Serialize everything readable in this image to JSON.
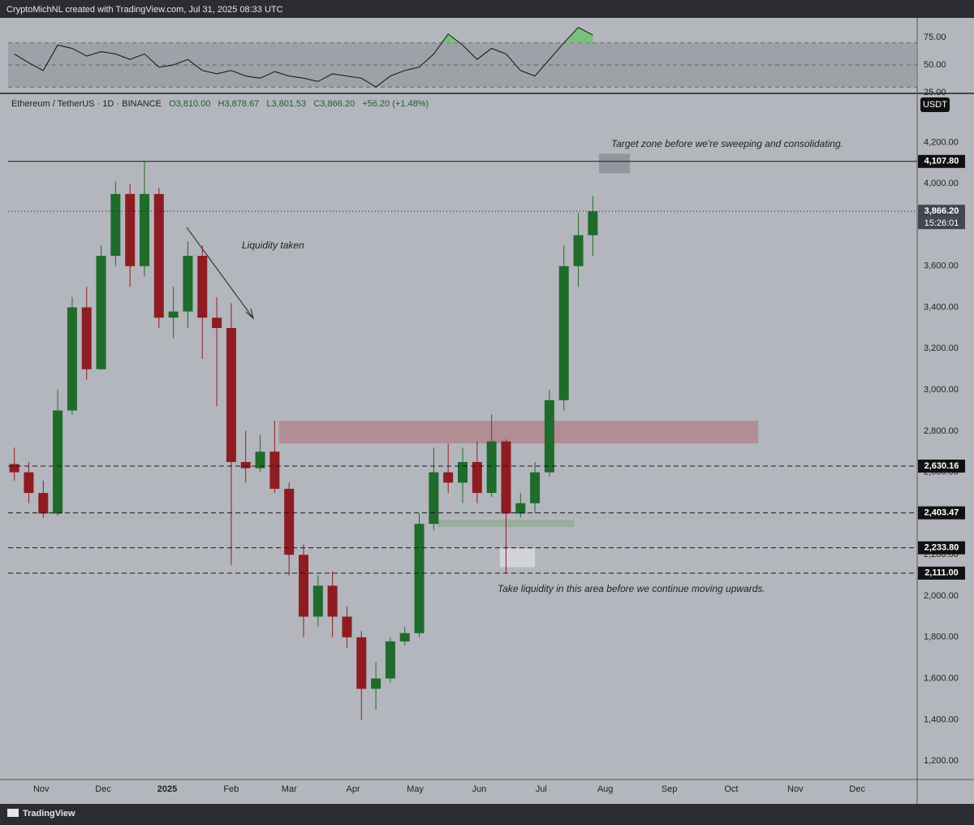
{
  "header": "CryptoMichNL created with TradingView.com, Jul 31, 2025 08:33 UTC",
  "footer": "TradingView",
  "chart_data": [
    {
      "type": "line",
      "color": "#111111",
      "x": [
        3,
        10,
        17,
        24,
        31,
        38,
        45,
        52,
        59,
        66,
        73,
        80,
        87,
        94,
        101,
        108,
        115,
        122,
        129,
        136,
        143,
        150,
        157,
        164,
        171,
        178,
        185,
        192,
        199,
        206,
        213,
        220,
        227,
        234,
        241,
        248,
        255,
        262,
        269,
        276,
        283
      ],
      "values": [
        60,
        52,
        45,
        68,
        65,
        58,
        62,
        60,
        55,
        60,
        48,
        50,
        55,
        45,
        42,
        45,
        40,
        38,
        44,
        40,
        38,
        35,
        42,
        40,
        38,
        30,
        40,
        45,
        48,
        60,
        78,
        68,
        55,
        65,
        60,
        45,
        40,
        55,
        70,
        84,
        77
      ],
      "xlim": [
        0,
        440
      ],
      "ylim": [
        25,
        92.6
      ],
      "yticks": [
        {
          "value": 75,
          "label": "75.00"
        },
        {
          "value": 50,
          "label": "50.00"
        },
        {
          "value": 25,
          "label": "25.00"
        }
      ],
      "band": [
        30,
        70
      ],
      "band_color": "#8f929a",
      "overbought_color": "#7bbf7e"
    },
    {
      "type": "candlestick",
      "symbol": "Ethereum / TetherUS · 1D · BINANCE",
      "ohlc_labels": [
        "O3,810.00",
        "H3,878.67",
        "L3,801.53",
        "C3,866.20",
        "+56.20 (+1.48%)"
      ],
      "currency": "USDT",
      "countdown": "15:26:01",
      "up_color": "#1f6b2b",
      "down_color": "#8e1c22",
      "x": [
        3,
        10,
        17,
        24,
        31,
        38,
        45,
        52,
        59,
        66,
        73,
        80,
        87,
        94,
        101,
        108,
        115,
        122,
        129,
        136,
        143,
        150,
        157,
        164,
        171,
        178,
        185,
        192,
        199,
        206,
        213,
        220,
        227,
        234,
        241,
        248,
        255,
        262,
        269,
        276,
        283
      ],
      "open": [
        2640,
        2600,
        2500,
        2400,
        2900,
        3400,
        3100,
        3650,
        3950,
        3600,
        3950,
        3350,
        3380,
        3650,
        3350,
        3300,
        2650,
        2620,
        2700,
        2520,
        2200,
        1900,
        2050,
        1900,
        1800,
        1550,
        1600,
        1780,
        1820,
        2350,
        2600,
        2550,
        2650,
        2500,
        2750,
        2400,
        2450,
        2600,
        2950,
        3600,
        3750
      ],
      "high": [
        2720,
        2650,
        2560,
        3000,
        3450,
        3500,
        3700,
        4010,
        4000,
        4107.8,
        3980,
        3500,
        3720,
        3700,
        3450,
        3420,
        2800,
        2780,
        2850,
        2550,
        2250,
        2100,
        2120,
        1950,
        1830,
        1680,
        1800,
        1850,
        2400,
        2720,
        2740,
        2720,
        2750,
        2880,
        2760,
        2500,
        2650,
        3000,
        3700,
        3860,
        3940
      ],
      "low": [
        2560,
        2450,
        2380,
        2390,
        2880,
        3050,
        3100,
        3600,
        3500,
        3550,
        3300,
        3250,
        3300,
        3150,
        2920,
        2150,
        2550,
        2600,
        2500,
        2100,
        1800,
        1850,
        1800,
        1750,
        1400,
        1450,
        1580,
        1760,
        1800,
        2320,
        2500,
        2450,
        2450,
        2480,
        2111,
        2380,
        2400,
        2580,
        2900,
        3500,
        3650
      ],
      "close": [
        2600,
        2500,
        2400,
        2900,
        3400,
        3100,
        3650,
        3950,
        3600,
        3950,
        3350,
        3380,
        3650,
        3350,
        3300,
        2650,
        2620,
        2700,
        2520,
        2200,
        1900,
        2050,
        1900,
        1800,
        1550,
        1600,
        1780,
        1820,
        2350,
        2600,
        2550,
        2650,
        2500,
        2750,
        2400,
        2450,
        2600,
        2950,
        3600,
        3750,
        3866.2
      ],
      "xlim": [
        0,
        440
      ],
      "ylim": [
        1110,
        4430
      ],
      "xticks": [
        {
          "value": 16,
          "label": "Nov"
        },
        {
          "value": 46,
          "label": "Dec"
        },
        {
          "value": 77,
          "label": "2025"
        },
        {
          "value": 108,
          "label": "Feb"
        },
        {
          "value": 136,
          "label": "Mar"
        },
        {
          "value": 167,
          "label": "Apr"
        },
        {
          "value": 197,
          "label": "May"
        },
        {
          "value": 228,
          "label": "Jun"
        },
        {
          "value": 258,
          "label": "Jul"
        },
        {
          "value": 289,
          "label": "Aug"
        },
        {
          "value": 320,
          "label": "Sep"
        },
        {
          "value": 350,
          "label": "Oct"
        },
        {
          "value": 381,
          "label": "Nov"
        },
        {
          "value": 411,
          "label": "Dec"
        }
      ],
      "yticks": [
        {
          "value": 1200,
          "label": "1,200.00"
        },
        {
          "value": 1400,
          "label": "1,400.00"
        },
        {
          "value": 1600,
          "label": "1,600.00"
        },
        {
          "value": 1800,
          "label": "1,800.00"
        },
        {
          "value": 2000,
          "label": "2,000.00"
        },
        {
          "value": 2200,
          "label": "2,200.00"
        },
        {
          "value": 2400,
          "label": "2,400.00"
        },
        {
          "value": 2600,
          "label": "2,600.00"
        },
        {
          "value": 2800,
          "label": "2,800.00"
        },
        {
          "value": 3000,
          "label": "3,000.00"
        },
        {
          "value": 3200,
          "label": "3,200.00"
        },
        {
          "value": 3400,
          "label": "3,400.00"
        },
        {
          "value": 3600,
          "label": "3,600.00"
        },
        {
          "value": 3800,
          "label": "3,800.00"
        },
        {
          "value": 4000,
          "label": "4,000.00"
        },
        {
          "value": 4200,
          "label": "4,200.00"
        }
      ],
      "levels": [
        {
          "value": 4107.8,
          "label": "4,107.80",
          "style": "solid"
        },
        {
          "value": 3866.2,
          "label": "3,866.20",
          "style": "dotted"
        },
        {
          "value": 2630.16,
          "label": "2,630.16",
          "style": "dashed"
        },
        {
          "value": 2403.47,
          "label": "2,403.47",
          "style": "dashed"
        },
        {
          "value": 2233.8,
          "label": "2,233.80",
          "style": "dashed"
        },
        {
          "value": 2111,
          "label": "2,111.00",
          "style": "dashed"
        }
      ],
      "zones": [
        {
          "low": 2740,
          "high": 2850,
          "from": 131,
          "to": 363,
          "color": "#b3868d"
        },
        {
          "low": 2335,
          "high": 2370,
          "from": 208,
          "to": 274,
          "color": "#93ab96"
        },
        {
          "low": 2140,
          "high": 2230,
          "from": 238,
          "to": 255,
          "color": "#d8d9dd"
        },
        {
          "low": 4050,
          "high": 4145,
          "from": 286,
          "to": 301,
          "color": "#8d9098"
        }
      ],
      "annotations": [
        "Target zone before we're sweeping and consolidating.",
        "Liquidity taken",
        "Take liquidity in this area before we continue moving upwards."
      ]
    }
  ]
}
